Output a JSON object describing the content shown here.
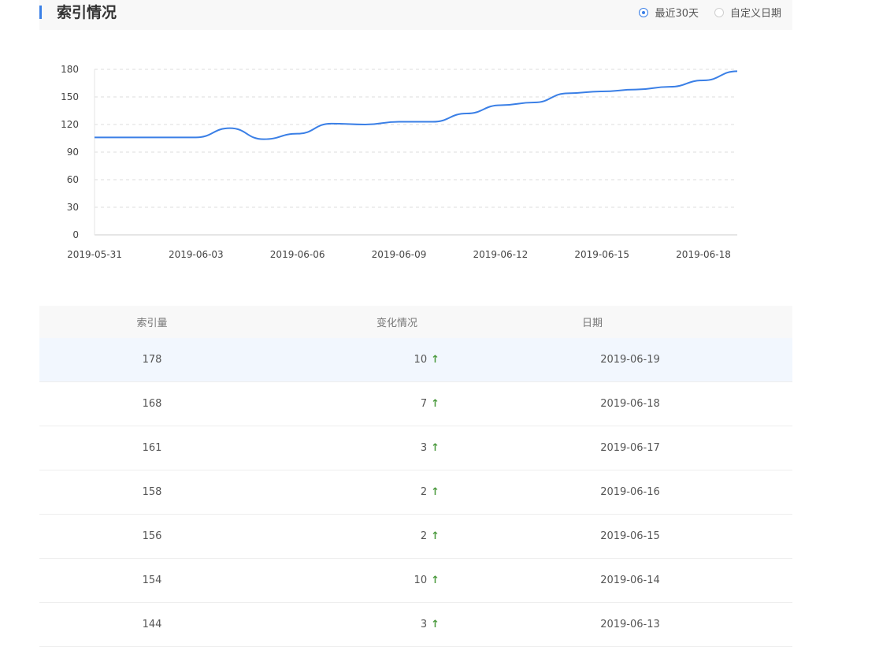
{
  "header": {
    "title": "索引情况",
    "options": [
      {
        "label": "最近30天",
        "checked": true
      },
      {
        "label": "自定义日期",
        "checked": false
      }
    ]
  },
  "chart_data": {
    "type": "line",
    "x": [
      "2019-05-31",
      "2019-06-01",
      "2019-06-02",
      "2019-06-03",
      "2019-06-04",
      "2019-06-05",
      "2019-06-06",
      "2019-06-07",
      "2019-06-08",
      "2019-06-09",
      "2019-06-10",
      "2019-06-11",
      "2019-06-12",
      "2019-06-13",
      "2019-06-14",
      "2019-06-15",
      "2019-06-16",
      "2019-06-17",
      "2019-06-18",
      "2019-06-19"
    ],
    "series": [
      {
        "values": [
          106,
          106,
          106,
          106,
          116,
          104,
          110,
          121,
          120,
          123,
          123,
          132,
          141,
          144,
          154,
          156,
          158,
          161,
          168,
          178
        ]
      }
    ],
    "xticks": [
      "2019-05-31",
      "2019-06-03",
      "2019-06-06",
      "2019-06-09",
      "2019-06-12",
      "2019-06-15",
      "2019-06-18"
    ],
    "yticks": [
      0,
      30,
      60,
      90,
      120,
      150,
      180
    ],
    "ylim": [
      0,
      180
    ],
    "grid": true,
    "color": "#3a7fe6"
  },
  "table": {
    "headers": [
      "索引量",
      "变化情况",
      "日期"
    ],
    "rows": [
      {
        "count": "178",
        "change": "10",
        "date": "2019-06-19"
      },
      {
        "count": "168",
        "change": "7",
        "date": "2019-06-18"
      },
      {
        "count": "161",
        "change": "3",
        "date": "2019-06-17"
      },
      {
        "count": "158",
        "change": "2",
        "date": "2019-06-16"
      },
      {
        "count": "156",
        "change": "2",
        "date": "2019-06-15"
      },
      {
        "count": "154",
        "change": "10",
        "date": "2019-06-14"
      },
      {
        "count": "144",
        "change": "3",
        "date": "2019-06-13"
      }
    ],
    "arrow_glyph": "↑",
    "arrow_icon": "arrow-up-icon",
    "arrow_color": "#4b9a3e"
  }
}
